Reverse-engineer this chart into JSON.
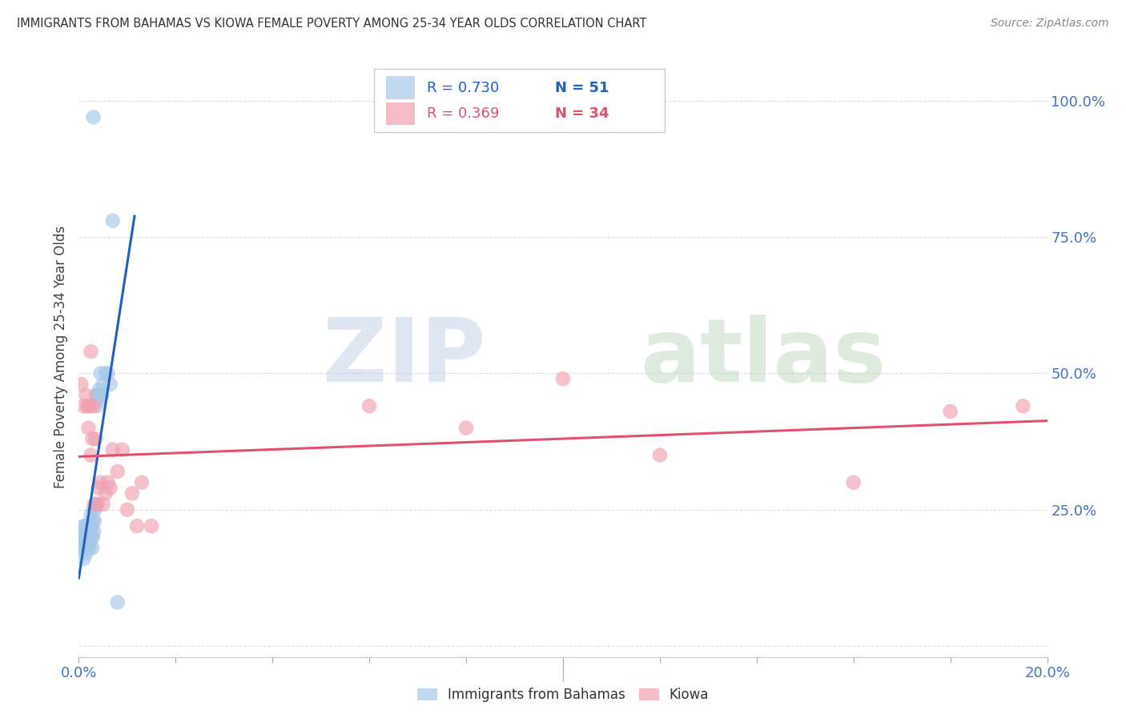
{
  "title": "IMMIGRANTS FROM BAHAMAS VS KIOWA FEMALE POVERTY AMONG 25-34 YEAR OLDS CORRELATION CHART",
  "source": "Source: ZipAtlas.com",
  "ylabel": "Female Poverty Among 25-34 Year Olds",
  "right_yticks": [
    0.0,
    0.25,
    0.5,
    0.75,
    1.0
  ],
  "right_yticklabels": [
    "",
    "25.0%",
    "50.0%",
    "75.0%",
    "100.0%"
  ],
  "xlim": [
    0.0,
    0.2
  ],
  "ylim": [
    -0.02,
    1.08
  ],
  "blue_R": 0.73,
  "blue_N": 51,
  "pink_R": 0.369,
  "pink_N": 34,
  "blue_label": "Immigrants from Bahamas",
  "pink_label": "Kiowa",
  "blue_color": "#a8c8e8",
  "pink_color": "#f0a0b0",
  "blue_line_color": "#2060c0",
  "pink_line_color": "#e05070",
  "background_color": "#ffffff",
  "grid_color": "#dddddd",
  "blue_x": [
    0.0005,
    0.0008,
    0.001,
    0.001,
    0.001,
    0.0012,
    0.0013,
    0.0013,
    0.0015,
    0.0015,
    0.0016,
    0.0017,
    0.0017,
    0.0018,
    0.0018,
    0.0019,
    0.002,
    0.002,
    0.0021,
    0.0022,
    0.0023,
    0.0023,
    0.0024,
    0.0025,
    0.0025,
    0.0026,
    0.0027,
    0.0028,
    0.0028,
    0.0029,
    0.003,
    0.003,
    0.0031,
    0.0032,
    0.0033,
    0.0035,
    0.0036,
    0.0037,
    0.0038,
    0.004,
    0.0042,
    0.0043,
    0.0045,
    0.0048,
    0.005,
    0.0055,
    0.006,
    0.0065,
    0.007,
    0.008,
    0.003
  ],
  "blue_y": [
    0.2,
    0.18,
    0.16,
    0.2,
    0.22,
    0.18,
    0.2,
    0.22,
    0.17,
    0.21,
    0.19,
    0.18,
    0.2,
    0.21,
    0.22,
    0.19,
    0.2,
    0.22,
    0.2,
    0.18,
    0.19,
    0.21,
    0.2,
    0.22,
    0.24,
    0.23,
    0.2,
    0.18,
    0.22,
    0.2,
    0.23,
    0.25,
    0.21,
    0.23,
    0.25,
    0.26,
    0.46,
    0.44,
    0.46,
    0.45,
    0.47,
    0.46,
    0.5,
    0.46,
    0.48,
    0.5,
    0.5,
    0.48,
    0.78,
    0.08,
    0.97
  ],
  "pink_x": [
    0.0005,
    0.001,
    0.0015,
    0.0018,
    0.002,
    0.0022,
    0.0025,
    0.0025,
    0.0028,
    0.003,
    0.0032,
    0.0035,
    0.0038,
    0.004,
    0.0045,
    0.005,
    0.0055,
    0.006,
    0.0065,
    0.007,
    0.008,
    0.009,
    0.01,
    0.011,
    0.012,
    0.013,
    0.015,
    0.06,
    0.08,
    0.1,
    0.12,
    0.16,
    0.18,
    0.195
  ],
  "pink_y": [
    0.48,
    0.44,
    0.46,
    0.44,
    0.4,
    0.44,
    0.35,
    0.54,
    0.38,
    0.44,
    0.26,
    0.38,
    0.26,
    0.29,
    0.3,
    0.26,
    0.28,
    0.3,
    0.29,
    0.36,
    0.32,
    0.36,
    0.25,
    0.28,
    0.22,
    0.3,
    0.22,
    0.44,
    0.4,
    0.49,
    0.35,
    0.3,
    0.43,
    0.44
  ]
}
